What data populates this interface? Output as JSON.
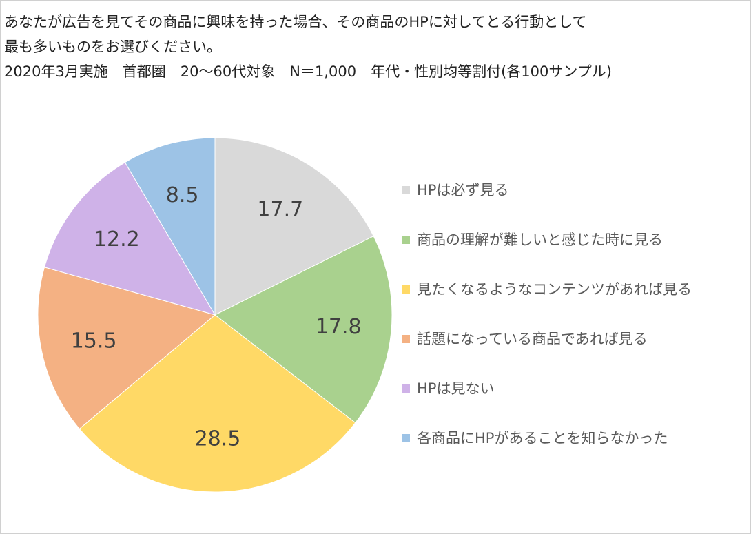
{
  "header": {
    "line1": "あなたが広告を見てその商品に興味を持った場合、その商品のHPに対してとる行動として",
    "line2": "最も多いものをお選びください。",
    "line3": "2020年3月実施　首都圏　20〜60代対象　N＝1,000　年代・性別均等割付(各100サンプル)"
  },
  "chart_data": {
    "type": "pie",
    "title": "",
    "legend_position": "right",
    "start_angle_deg": 0,
    "direction": "clockwise",
    "slices": [
      {
        "label": "HPは必ず見る",
        "value": 17.7,
        "display": "17.7",
        "color": "#d9d9d9"
      },
      {
        "label": "商品の理解が難しいと感じた時に見る",
        "value": 17.8,
        "display": "17.8",
        "color": "#a9d18e"
      },
      {
        "label": "見たくなるようなコンテンツがあれば見る",
        "value": 28.5,
        "display": "28.5",
        "color": "#ffd966"
      },
      {
        "label": "話題になっている商品であれば見る",
        "value": 15.5,
        "display": "15.5",
        "color": "#f4b183"
      },
      {
        "label": "HPは見ない",
        "value": 12.2,
        "display": "12.2",
        "color": "#cfb2e8"
      },
      {
        "label": "各商品にHPがあることを知らなかった",
        "value": 8.5,
        "display": "8.5",
        "color": "#9dc3e6"
      }
    ]
  }
}
